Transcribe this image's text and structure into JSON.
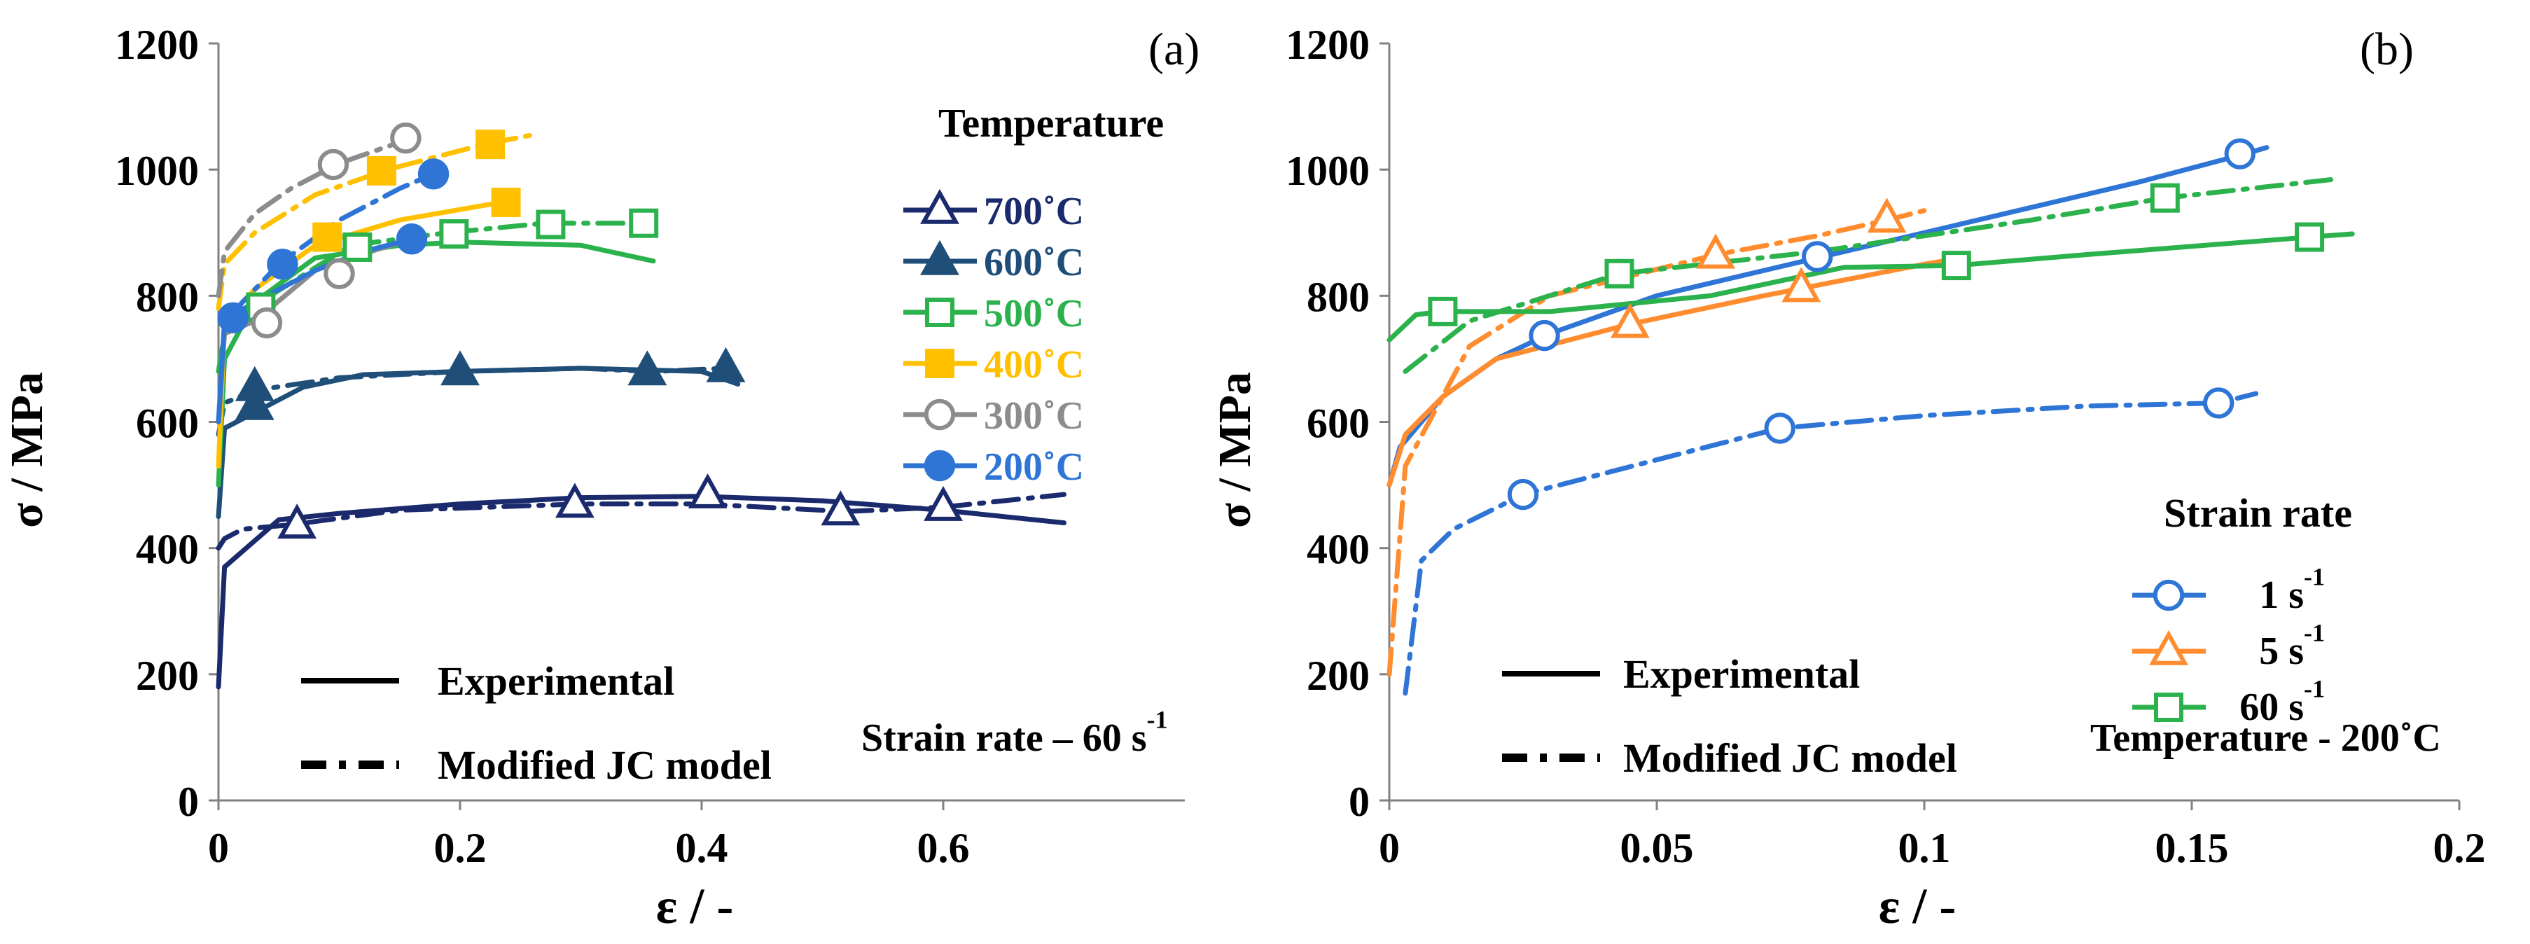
{
  "chart_data": [
    {
      "type": "line",
      "panel_label": "(a)",
      "ylabel": "σ / MPa",
      "xlabel": "ε / -",
      "xlim": [
        0,
        0.8
      ],
      "ylim": [
        0,
        1200
      ],
      "xticks": [
        0,
        0.2,
        0.4,
        0.6
      ],
      "xtick_labels": [
        "0",
        "0.2",
        "0.4",
        "0.6"
      ],
      "yticks": [
        0,
        200,
        400,
        600,
        800,
        1000,
        1200
      ],
      "ytick_labels": [
        "0",
        "200",
        "400",
        "600",
        "800",
        "1000",
        "1200"
      ],
      "legend_title": "Temperature",
      "legend_entries": [
        {
          "label": "700˚C",
          "color": "#1a2a6c",
          "marker": "triangle-open"
        },
        {
          "label": "600˚C",
          "color": "#1f4e79",
          "marker": "triangle-filled"
        },
        {
          "label": "500˚C",
          "color": "#2bb24c",
          "marker": "square-open"
        },
        {
          "label": "400˚C",
          "color": "#ffc000",
          "marker": "square-filled"
        },
        {
          "label": "300˚C",
          "color": "#8c8c8c",
          "marker": "circle-open"
        },
        {
          "label": "200˚C",
          "color": "#2e75d6",
          "marker": "circle-filled"
        }
      ],
      "line_legend": [
        {
          "label": "Experimental",
          "style": "solid"
        },
        {
          "label": "Modified JC model",
          "style": "dash-dot"
        }
      ],
      "annotation": "Strain rate – 60 s-1",
      "series": [
        {
          "name": "700˚C Experimental",
          "color": "#1a2a6c",
          "style": "solid",
          "x": [
            0,
            0.005,
            0.02,
            0.05,
            0.1,
            0.2,
            0.3,
            0.4,
            0.5,
            0.6,
            0.7
          ],
          "y": [
            180,
            370,
            395,
            445,
            455,
            470,
            480,
            482,
            475,
            460,
            440
          ]
        },
        {
          "name": "700˚C Modified JC model",
          "color": "#1a2a6c",
          "style": "dash-dot",
          "marker": "triangle-open",
          "x": [
            0,
            0.005,
            0.02,
            0.06,
            0.15,
            0.3,
            0.4,
            0.52,
            0.6,
            0.7
          ],
          "y": [
            400,
            415,
            430,
            437,
            460,
            470,
            470,
            458,
            465,
            485
          ],
          "marker_x": [
            0.065,
            0.295,
            0.405,
            0.515,
            0.6
          ],
          "marker_y": [
            437,
            470,
            485,
            458,
            465
          ]
        },
        {
          "name": "600˚C Experimental",
          "color": "#1f4e79",
          "style": "solid",
          "x": [
            0,
            0.005,
            0.03,
            0.07,
            0.12,
            0.2,
            0.3,
            0.4,
            0.43
          ],
          "y": [
            450,
            590,
            615,
            655,
            675,
            680,
            685,
            680,
            660
          ]
        },
        {
          "name": "600˚C Modified JC model",
          "color": "#1f4e79",
          "style": "dash-dot",
          "marker": "triangle-filled",
          "x": [
            0,
            0.005,
            0.03,
            0.1,
            0.2,
            0.3,
            0.36,
            0.42
          ],
          "y": [
            580,
            630,
            650,
            670,
            680,
            685,
            680,
            685
          ],
          "marker_x": [
            0.03,
            0.2,
            0.355,
            0.42,
            0.03
          ],
          "marker_y": [
            655,
            680,
            680,
            685,
            625
          ]
        },
        {
          "name": "500˚C Experimental",
          "color": "#2bb24c",
          "style": "solid",
          "x": [
            0,
            0.005,
            0.03,
            0.08,
            0.15,
            0.2,
            0.3,
            0.36
          ],
          "y": [
            500,
            700,
            790,
            860,
            880,
            885,
            880,
            855
          ]
        },
        {
          "name": "500˚C Modified JC model",
          "color": "#2bb24c",
          "style": "dash-dot",
          "marker": "square-open",
          "x": [
            0,
            0.005,
            0.03,
            0.11,
            0.19,
            0.27,
            0.35
          ],
          "y": [
            680,
            740,
            785,
            880,
            900,
            915,
            915
          ],
          "marker_x": [
            0.035,
            0.115,
            0.195,
            0.275,
            0.352
          ],
          "marker_y": [
            782,
            877,
            898,
            913,
            915
          ]
        },
        {
          "name": "400˚C Experimental",
          "color": "#ffc000",
          "style": "solid",
          "x": [
            0,
            0.005,
            0.03,
            0.08,
            0.15,
            0.24
          ],
          "y": [
            530,
            760,
            810,
            880,
            920,
            950
          ]
        },
        {
          "name": "400˚C Modified JC model",
          "color": "#ffc000",
          "style": "dash-dot",
          "marker": "square-filled",
          "x": [
            0,
            0.005,
            0.03,
            0.08,
            0.14,
            0.22,
            0.26
          ],
          "y": [
            780,
            850,
            900,
            960,
            1000,
            1040,
            1055
          ],
          "marker_x": [
            0.09,
            0.135,
            0.225,
            0.238
          ],
          "marker_y": [
            893,
            998,
            1040,
            948
          ]
        },
        {
          "name": "300˚C Experimental",
          "color": "#8c8c8c",
          "style": "solid",
          "x": [
            0,
            0.005,
            0.03,
            0.08,
            0.1,
            0.16
          ],
          "y": [
            600,
            740,
            760,
            840,
            855,
            890
          ]
        },
        {
          "name": "300˚C Modified JC model",
          "color": "#8c8c8c",
          "style": "dash-dot",
          "marker": "circle-open",
          "x": [
            0,
            0.005,
            0.03,
            0.06,
            0.1,
            0.16
          ],
          "y": [
            800,
            870,
            930,
            970,
            1010,
            1050
          ],
          "marker_x": [
            0.04,
            0.1,
            0.095,
            0.155
          ],
          "marker_y": [
            757,
            835,
            1008,
            1050
          ]
        },
        {
          "name": "200˚C Experimental",
          "color": "#2e75d6",
          "style": "solid",
          "x": [
            0,
            0.005,
            0.03,
            0.08,
            0.12,
            0.16
          ],
          "y": [
            600,
            760,
            790,
            840,
            870,
            890
          ]
        },
        {
          "name": "200˚C Modified JC model",
          "color": "#2e75d6",
          "style": "dash-dot",
          "marker": "circle-filled",
          "x": [
            0.01,
            0.05,
            0.1,
            0.15,
            0.18
          ],
          "y": [
            770,
            850,
            920,
            970,
            995
          ],
          "marker_x": [
            0.012,
            0.053,
            0.16,
            0.178
          ],
          "marker_y": [
            765,
            850,
            890,
            993
          ]
        }
      ]
    },
    {
      "type": "line",
      "panel_label": "(b)",
      "ylabel": "σ / MPa",
      "xlabel": "ε / -",
      "xlim": [
        0,
        0.2
      ],
      "ylim": [
        0,
        1200
      ],
      "xticks": [
        0,
        0.05,
        0.1,
        0.15,
        0.2
      ],
      "xtick_labels": [
        "0",
        "0.05",
        "0.1",
        "0.15",
        "0.2"
      ],
      "yticks": [
        0,
        200,
        400,
        600,
        800,
        1000,
        1200
      ],
      "ytick_labels": [
        "0",
        "200",
        "400",
        "600",
        "800",
        "1000",
        "1200"
      ],
      "legend_title": "Strain rate",
      "legend_entries": [
        {
          "label": "1 s-1",
          "color": "#2e75d6",
          "marker": "circle-open"
        },
        {
          "label": "5 s-1",
          "color": "#ff8c2e",
          "marker": "triangle-open"
        },
        {
          "label": "60 s-1",
          "color": "#2bb24c",
          "marker": "square-open"
        }
      ],
      "line_legend": [
        {
          "label": "Experimental",
          "style": "solid"
        },
        {
          "label": "Modified JC model",
          "style": "dash-dot"
        }
      ],
      "annotation": "Temperature - 200˚C",
      "series": [
        {
          "name": "1 s-1 Experimental",
          "color": "#2e75d6",
          "style": "solid",
          "marker": "circle-open",
          "x": [
            0,
            0.002,
            0.01,
            0.02,
            0.03,
            0.05,
            0.08,
            0.1,
            0.12,
            0.14,
            0.16,
            0.164
          ],
          "y": [
            500,
            560,
            640,
            700,
            740,
            800,
            860,
            900,
            940,
            980,
            1025,
            1035
          ],
          "marker_x": [
            0.029,
            0.08,
            0.159
          ],
          "marker_y": [
            737,
            862,
            1025
          ]
        },
        {
          "name": "1 s-1 Modified JC model",
          "color": "#2e75d6",
          "style": "dash-dot",
          "marker": "circle-open",
          "x": [
            0.003,
            0.006,
            0.012,
            0.025,
            0.05,
            0.073,
            0.1,
            0.13,
            0.155,
            0.162
          ],
          "y": [
            170,
            380,
            430,
            485,
            540,
            590,
            610,
            625,
            630,
            645
          ],
          "marker_x": [
            0.025,
            0.073,
            0.155
          ],
          "marker_y": [
            485,
            590,
            630
          ]
        },
        {
          "name": "5 s-1 Experimental",
          "color": "#ff8c2e",
          "style": "solid",
          "marker": "triangle-open",
          "x": [
            0,
            0.003,
            0.01,
            0.02,
            0.045,
            0.07,
            0.1,
            0.107
          ],
          "y": [
            500,
            580,
            640,
            700,
            755,
            800,
            850,
            860
          ],
          "marker_x": [
            0.045,
            0.077
          ],
          "marker_y": [
            755,
            812
          ]
        },
        {
          "name": "5 s-1 Modified JC model",
          "color": "#ff8c2e",
          "style": "dash-dot",
          "marker": "triangle-open",
          "x": [
            0,
            0.003,
            0.015,
            0.03,
            0.061,
            0.08,
            0.093,
            0.1
          ],
          "y": [
            200,
            530,
            720,
            800,
            865,
            895,
            920,
            935
          ],
          "marker_x": [
            0.061,
            0.093
          ],
          "marker_y": [
            865,
            922
          ]
        },
        {
          "name": "60 s-1 Experimental",
          "color": "#2bb24c",
          "style": "solid",
          "marker": "square-open",
          "x": [
            0,
            0.005,
            0.01,
            0.03,
            0.06,
            0.085,
            0.106,
            0.13,
            0.172,
            0.18
          ],
          "y": [
            730,
            770,
            775,
            775,
            800,
            845,
            848,
            865,
            893,
            898
          ],
          "marker_x": [
            0.01,
            0.106,
            0.172
          ],
          "marker_y": [
            775,
            848,
            893
          ]
        },
        {
          "name": "60 s-1 Modified JC model",
          "color": "#2bb24c",
          "style": "dash-dot",
          "marker": "square-open",
          "x": [
            0.003,
            0.015,
            0.043,
            0.08,
            0.12,
            0.145,
            0.177
          ],
          "y": [
            680,
            760,
            835,
            870,
            920,
            955,
            985
          ],
          "marker_x": [
            0.043,
            0.145
          ],
          "marker_y": [
            835,
            955
          ]
        }
      ]
    }
  ]
}
